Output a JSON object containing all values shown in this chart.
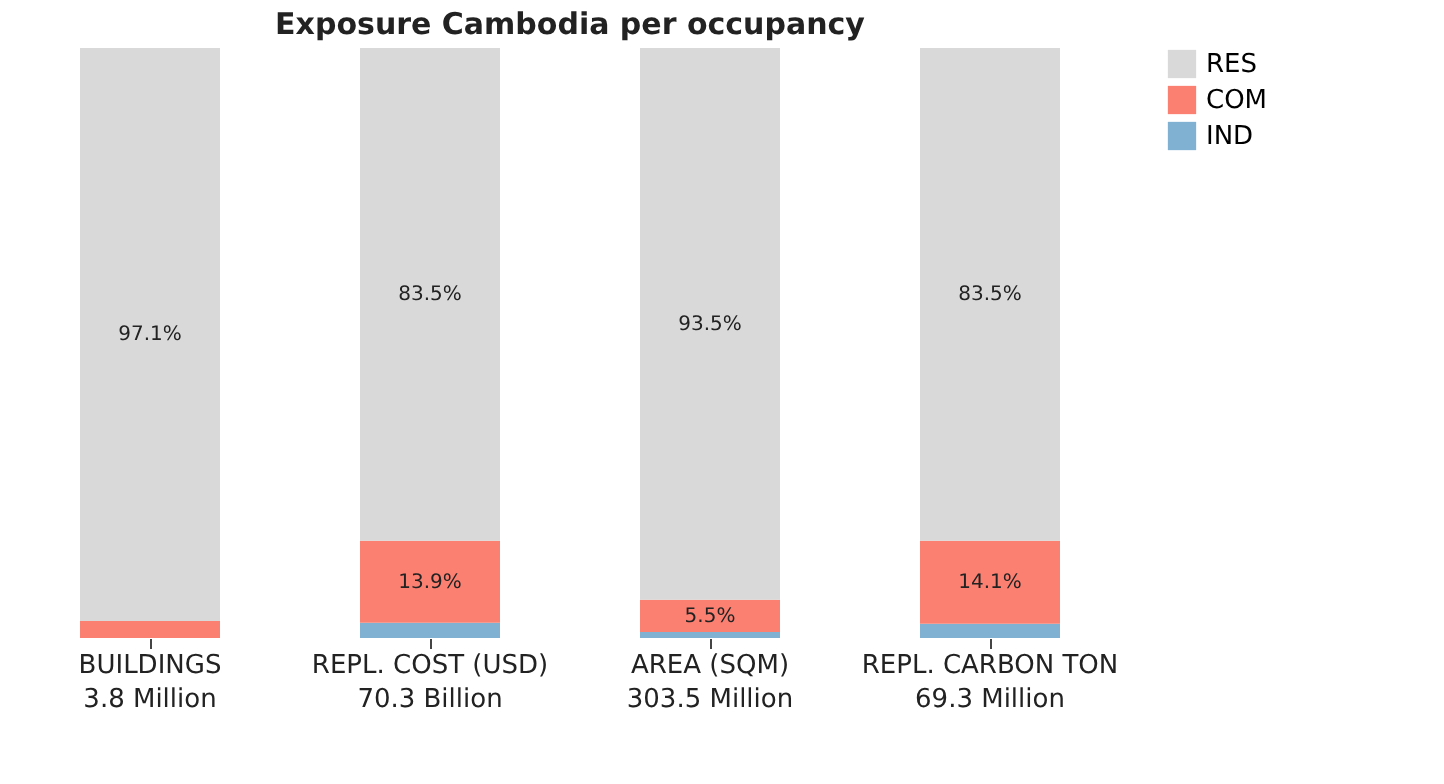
{
  "chart_data": {
    "type": "bar",
    "title": "Exposure Cambodia per occupancy",
    "stacked": true,
    "legend": "top right",
    "categories": [
      "BUILDINGS\n3.8 Million",
      "REPL. COST (USD)\n70.3 Billion",
      "AREA (SQM)\n303.5 Million",
      "REPL. CARBON TON\n69.3 Million"
    ],
    "series": [
      {
        "name": "IND",
        "color": "#80b1d3",
        "values": [
          null,
          2.6,
          1.0,
          2.4
        ],
        "value_labels": [
          null,
          null,
          null,
          null
        ]
      },
      {
        "name": "COM",
        "color": "#fb8072",
        "values": [
          2.9,
          13.9,
          5.5,
          14.1
        ],
        "value_labels": [
          null,
          "13.9%",
          "5.5%",
          "14.1%"
        ]
      },
      {
        "name": "RES",
        "color": "#d9d9d9",
        "values": [
          97.1,
          83.5,
          93.5,
          83.5
        ],
        "value_labels": [
          "97.1%",
          "83.5%",
          "93.5%",
          "83.5%"
        ]
      }
    ]
  }
}
